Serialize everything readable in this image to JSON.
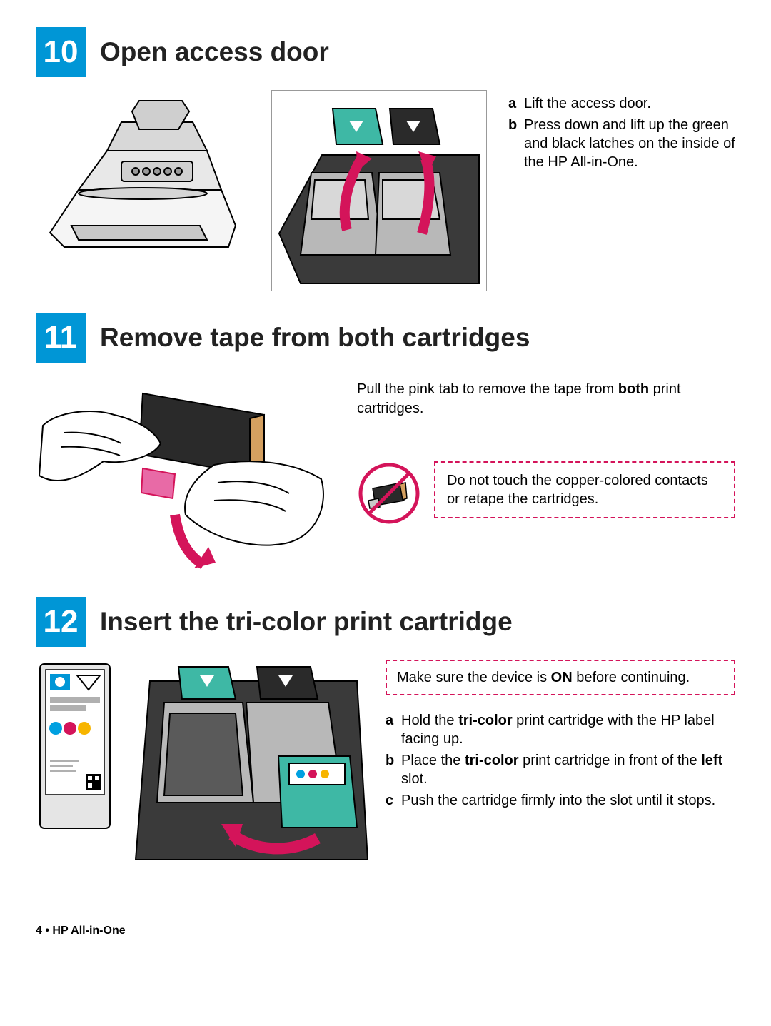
{
  "colors": {
    "step_bg": "#0096d6",
    "step_text": "#ffffff",
    "heading": "#222222",
    "body": "#000000",
    "warning_border": "#d4145a",
    "teal": "#3eb8a5",
    "magenta": "#d4145a",
    "grey": "#b0b0b0",
    "dark": "#2a2a2a"
  },
  "step10": {
    "num": "10",
    "title": "Open access door",
    "items": [
      {
        "letter": "a",
        "text": "Lift the access door."
      },
      {
        "letter": "b",
        "text": "Press down and lift up the green and black latches on the inside of the HP All-in-One."
      }
    ]
  },
  "step11": {
    "num": "11",
    "title": "Remove tape from both cartridges",
    "intro_pre": "Pull the pink tab to remove the tape from ",
    "intro_bold": "both",
    "intro_post": " print cartridges.",
    "warning": "Do not touch the copper-colored contacts or retape the cartridges."
  },
  "step12": {
    "num": "12",
    "title": "Insert the tri-color print cartridge",
    "warning_pre": "Make sure the device is ",
    "warning_bold": "ON",
    "warning_post": " before continuing.",
    "items": [
      {
        "letter": "a",
        "html": "Hold the <b>tri-color</b> print cartridge with the HP label facing up."
      },
      {
        "letter": "b",
        "html": "Place the <b>tri-color</b> print cartridge in front of the <b>left</b> slot."
      },
      {
        "letter": "c",
        "html": "Push the cartridge firmly into the slot until it stops."
      }
    ]
  },
  "footer": "4 • HP All-in-One"
}
